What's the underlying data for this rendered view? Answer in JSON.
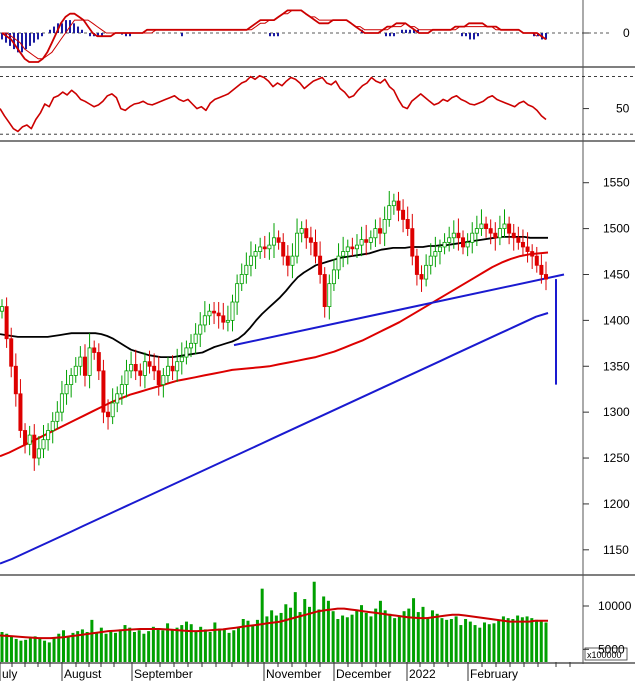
{
  "chart_data": [
    {
      "type": "bar",
      "panel": "macd",
      "yticks": [
        0
      ],
      "ylim": [
        -9,
        9
      ],
      "histogram_color": "#1a1aa0",
      "line_color": "#cc0000",
      "signal_color": "#cc0000",
      "histogram": [
        -2,
        -3,
        -4,
        -5,
        -6,
        -6,
        -5,
        -4,
        -3,
        -2,
        -1,
        0,
        1,
        2,
        3,
        3,
        4,
        4,
        3,
        2,
        1,
        0,
        -1,
        -1,
        -1,
        -1,
        0,
        0,
        0,
        0,
        -0.5,
        -1,
        -1,
        0,
        0,
        0,
        0,
        0,
        0,
        0,
        0,
        0,
        0,
        0,
        0,
        -1,
        0,
        0,
        0,
        0,
        0,
        0,
        0,
        0,
        0,
        0,
        0,
        0,
        0,
        0,
        0,
        0,
        0,
        0,
        0,
        0,
        0,
        -1,
        -1,
        -1,
        0,
        0,
        0,
        0,
        0,
        0,
        0,
        0,
        0,
        0,
        0,
        0,
        0,
        0,
        0,
        0,
        0,
        0,
        0,
        0,
        1,
        0,
        0,
        0,
        0,
        0,
        -1,
        -1,
        -1,
        0,
        1,
        1,
        1,
        1,
        1,
        0,
        0,
        0,
        0,
        0,
        0,
        0,
        0,
        0,
        0,
        -1,
        -1,
        -2,
        -2,
        -1,
        0,
        0,
        0,
        0,
        0,
        0,
        0,
        0,
        0,
        0,
        0,
        0,
        0,
        -1,
        -1,
        -2,
        -2
      ],
      "line": [
        0,
        -1,
        -2,
        -4,
        -6,
        -8,
        -9,
        -9,
        -9,
        -8,
        -6,
        -3,
        0,
        3,
        5,
        6,
        6,
        5,
        4,
        2,
        0,
        -1,
        -1,
        -1,
        -1,
        0,
        0,
        0,
        0,
        0,
        0,
        0,
        1,
        1,
        1,
        1,
        1,
        1,
        1,
        1,
        1,
        1,
        1,
        1,
        1,
        1,
        1,
        1,
        1,
        1,
        1,
        1,
        1,
        1,
        1,
        2,
        3,
        4,
        4,
        4,
        4,
        5,
        6,
        7,
        7,
        7,
        7,
        6,
        5,
        4,
        3,
        3,
        3,
        4,
        4,
        4,
        4,
        3,
        2,
        1,
        0,
        0,
        0,
        0,
        1,
        2,
        2,
        3,
        3,
        3,
        2,
        1,
        0,
        0,
        0,
        1,
        1,
        1,
        1,
        1,
        2,
        2,
        2,
        3,
        3,
        3,
        3,
        2,
        2,
        2,
        1,
        1,
        1,
        1,
        1,
        0,
        0,
        0,
        0,
        -1,
        -2
      ],
      "signal": [
        0,
        0,
        -1,
        -2,
        -3,
        -5,
        -6,
        -7,
        -8,
        -8,
        -7,
        -6,
        -4,
        -2,
        0,
        2,
        4,
        4,
        4,
        4,
        3,
        2,
        1,
        0,
        0,
        0,
        0,
        0,
        0,
        0,
        0,
        0,
        0,
        0,
        1,
        1,
        1,
        1,
        1,
        1,
        1,
        1,
        1,
        1,
        1,
        1,
        1,
        1,
        1,
        1,
        1,
        1,
        1,
        1,
        1,
        1,
        2,
        3,
        3,
        4,
        4,
        5,
        6,
        6,
        7,
        7,
        7,
        6,
        5,
        5,
        4,
        4,
        4,
        4,
        4,
        4,
        4,
        3,
        2,
        2,
        1,
        1,
        1,
        1,
        1,
        1,
        2,
        2,
        2,
        3,
        2,
        2,
        1,
        1,
        1,
        1,
        1,
        1,
        1,
        1,
        1,
        2,
        2,
        2,
        2,
        2,
        2,
        2,
        2,
        1,
        1,
        1,
        1,
        1,
        1,
        0,
        0,
        0,
        -1
      ]
    },
    {
      "type": "line",
      "panel": "rsi",
      "yticks": [
        50
      ],
      "ylim": [
        20,
        90
      ],
      "reference_lines": [
        85,
        22
      ],
      "line_color": "#cc0000",
      "values": [
        50,
        42,
        35,
        28,
        25,
        30,
        32,
        28,
        38,
        45,
        55,
        52,
        62,
        64,
        68,
        65,
        70,
        66,
        60,
        58,
        55,
        52,
        54,
        58,
        64,
        66,
        62,
        50,
        48,
        52,
        55,
        56,
        58,
        55,
        54,
        56,
        58,
        60,
        62,
        64,
        60,
        58,
        60,
        55,
        50,
        52,
        48,
        56,
        60,
        62,
        64,
        66,
        70,
        74,
        78,
        80,
        85,
        82,
        86,
        84,
        80,
        74,
        78,
        75,
        80,
        84,
        82,
        78,
        72,
        76,
        80,
        82,
        84,
        78,
        76,
        80,
        72,
        68,
        62,
        64,
        70,
        75,
        78,
        84,
        80,
        78,
        82,
        74,
        70,
        60,
        52,
        50,
        58,
        62,
        66,
        62,
        58,
        54,
        56,
        60,
        58,
        62,
        64,
        60,
        58,
        55,
        54,
        56,
        58,
        62,
        64,
        60,
        58,
        56,
        54,
        52,
        56,
        58,
        54,
        52,
        48,
        42,
        38
      ]
    },
    {
      "type": "candlestick",
      "panel": "price",
      "yticks": [
        1150,
        1200,
        1250,
        1300,
        1350,
        1400,
        1450,
        1500,
        1550
      ],
      "ylim": [
        1128,
        1590
      ],
      "up_color": "#00a000",
      "down_color": "#dd0000",
      "close": [
        1415,
        1380,
        1350,
        1320,
        1280,
        1265,
        1275,
        1250,
        1260,
        1270,
        1280,
        1290,
        1300,
        1320,
        1330,
        1340,
        1350,
        1360,
        1340,
        1370,
        1365,
        1345,
        1300,
        1295,
        1310,
        1320,
        1330,
        1345,
        1352,
        1345,
        1340,
        1355,
        1350,
        1345,
        1330,
        1340,
        1350,
        1345,
        1355,
        1360,
        1370,
        1375,
        1385,
        1395,
        1405,
        1410,
        1408,
        1405,
        1398,
        1400,
        1420,
        1440,
        1450,
        1460,
        1470,
        1475,
        1480,
        1478,
        1482,
        1490,
        1485,
        1470,
        1460,
        1470,
        1495,
        1500,
        1490,
        1485,
        1470,
        1450,
        1415,
        1440,
        1455,
        1470,
        1475,
        1480,
        1478,
        1482,
        1488,
        1485,
        1490,
        1500,
        1495,
        1510,
        1525,
        1530,
        1520,
        1510,
        1500,
        1470,
        1450,
        1445,
        1460,
        1470,
        1475,
        1480,
        1485,
        1490,
        1495,
        1490,
        1480,
        1485,
        1495,
        1500,
        1505,
        1500,
        1495,
        1490,
        1500,
        1505,
        1495,
        1490,
        1485,
        1480,
        1475,
        1470,
        1460,
        1450,
        1445
      ],
      "ma_short": [
        1385,
        1384,
        1383,
        1382,
        1382,
        1382,
        1382,
        1382,
        1382,
        1383,
        1384,
        1385,
        1386,
        1386,
        1386,
        1386,
        1386,
        1385,
        1383,
        1380,
        1376,
        1372,
        1368,
        1366,
        1364,
        1362,
        1361,
        1360,
        1360,
        1360,
        1361,
        1362,
        1363,
        1364,
        1365,
        1368,
        1371,
        1373,
        1375,
        1377,
        1380,
        1385,
        1392,
        1400,
        1407,
        1413,
        1419,
        1425,
        1432,
        1440,
        1447,
        1452,
        1456,
        1460,
        1462,
        1464,
        1466,
        1468,
        1469,
        1470,
        1471,
        1472,
        1473,
        1475,
        1477,
        1478,
        1479,
        1479,
        1479,
        1480,
        1480,
        1480,
        1481,
        1481,
        1482,
        1482,
        1483,
        1484,
        1485,
        1486,
        1487,
        1488,
        1489,
        1490,
        1491,
        1491,
        1491,
        1491,
        1491,
        1490,
        1490,
        1490,
        1490
      ],
      "ma_mid": [
        1252,
        1256,
        1261,
        1266,
        1271,
        1276,
        1281,
        1286,
        1291,
        1296,
        1301,
        1306,
        1311,
        1315,
        1319,
        1322,
        1325,
        1328,
        1331,
        1334,
        1336,
        1338,
        1340,
        1342,
        1344,
        1346,
        1347,
        1348,
        1349,
        1350,
        1352,
        1354,
        1356,
        1358,
        1360,
        1363,
        1366,
        1370,
        1374,
        1378,
        1383,
        1388,
        1393,
        1398,
        1404,
        1410,
        1416,
        1422,
        1428,
        1434,
        1440,
        1446,
        1452,
        1458,
        1463,
        1467,
        1470,
        1472,
        1473,
        1474
      ],
      "ma_long": [
        1135,
        1140,
        1146,
        1152,
        1158,
        1164,
        1170,
        1176,
        1182,
        1188,
        1194,
        1200,
        1206,
        1212,
        1218,
        1224,
        1230,
        1236,
        1242,
        1248,
        1254,
        1260,
        1266,
        1272,
        1278,
        1284,
        1290,
        1296,
        1302,
        1308,
        1314,
        1320,
        1326,
        1332,
        1338,
        1344,
        1350,
        1356,
        1362,
        1368,
        1374,
        1380,
        1386,
        1392,
        1398,
        1404,
        1408
      ],
      "trendline": [
        [
          1373,
          1450
        ]
      ],
      "projection_low": 1330
    },
    {
      "type": "bar",
      "panel": "volume",
      "yticks": [
        5000,
        10000
      ],
      "ylim": [
        4000,
        13000
      ],
      "unit_label": "x100000",
      "bar_color": "#00a000",
      "ma_color": "#cc0000",
      "values": [
        7000,
        6800,
        6500,
        6200,
        6000,
        6100,
        6300,
        6500,
        6200,
        6000,
        5800,
        6400,
        6800,
        7200,
        6500,
        6900,
        7100,
        7300,
        7000,
        8400,
        6900,
        7500,
        6800,
        7200,
        6900,
        7300,
        7800,
        7500,
        7000,
        7200,
        6800,
        7100,
        7600,
        7400,
        7200,
        8000,
        7300,
        7500,
        7800,
        8200,
        7900,
        7100,
        7600,
        7300,
        7000,
        8100,
        7400,
        7300,
        6900,
        7200,
        7600,
        8500,
        8300,
        7800,
        8400,
        12000,
        8800,
        9500,
        8900,
        9200,
        10200,
        9800,
        11600,
        9300,
        10800,
        9900,
        12800,
        9600,
        11100,
        10600,
        9400,
        8500,
        8900,
        8700,
        9000,
        9500,
        10100,
        9200,
        8800,
        9700,
        10600,
        9500,
        9100,
        8600,
        8900,
        9400,
        9700,
        10900,
        9300,
        9900,
        8700,
        9500,
        9100,
        8600,
        8400,
        8500,
        8800,
        7800,
        8500,
        8200,
        7800,
        7500,
        8100,
        7900,
        8000,
        8300,
        8800,
        8600,
        8500,
        8900,
        8700,
        8800,
        8600,
        8400,
        8300,
        8100
      ],
      "ma": [
        6600,
        6550,
        6500,
        6450,
        6400,
        6350,
        6300,
        6300,
        6300,
        6350,
        6400,
        6500,
        6600,
        6700,
        6800,
        6900,
        7000,
        7100,
        7150,
        7200,
        7250,
        7300,
        7350,
        7350,
        7350,
        7350,
        7300,
        7250,
        7200,
        7150,
        7100,
        7100,
        7150,
        7200,
        7250,
        7300,
        7400,
        7500,
        7600,
        7700,
        7800,
        7900,
        8000,
        8100,
        8200,
        8400,
        8600,
        8800,
        9000,
        9200,
        9400,
        9500,
        9600,
        9700,
        9700,
        9600,
        9500,
        9400,
        9300,
        9200,
        9100,
        9000,
        8900,
        8800,
        8700,
        8650,
        8600,
        8600,
        8700,
        8800,
        8900,
        9000,
        9000,
        8900,
        8800,
        8700,
        8600,
        8500,
        8400,
        8300,
        8200,
        8200,
        8200,
        8200,
        8300,
        8300,
        8300
      ]
    }
  ],
  "months": [
    "uly",
    "August",
    "September",
    "November",
    "December",
    "2022",
    "February"
  ]
}
